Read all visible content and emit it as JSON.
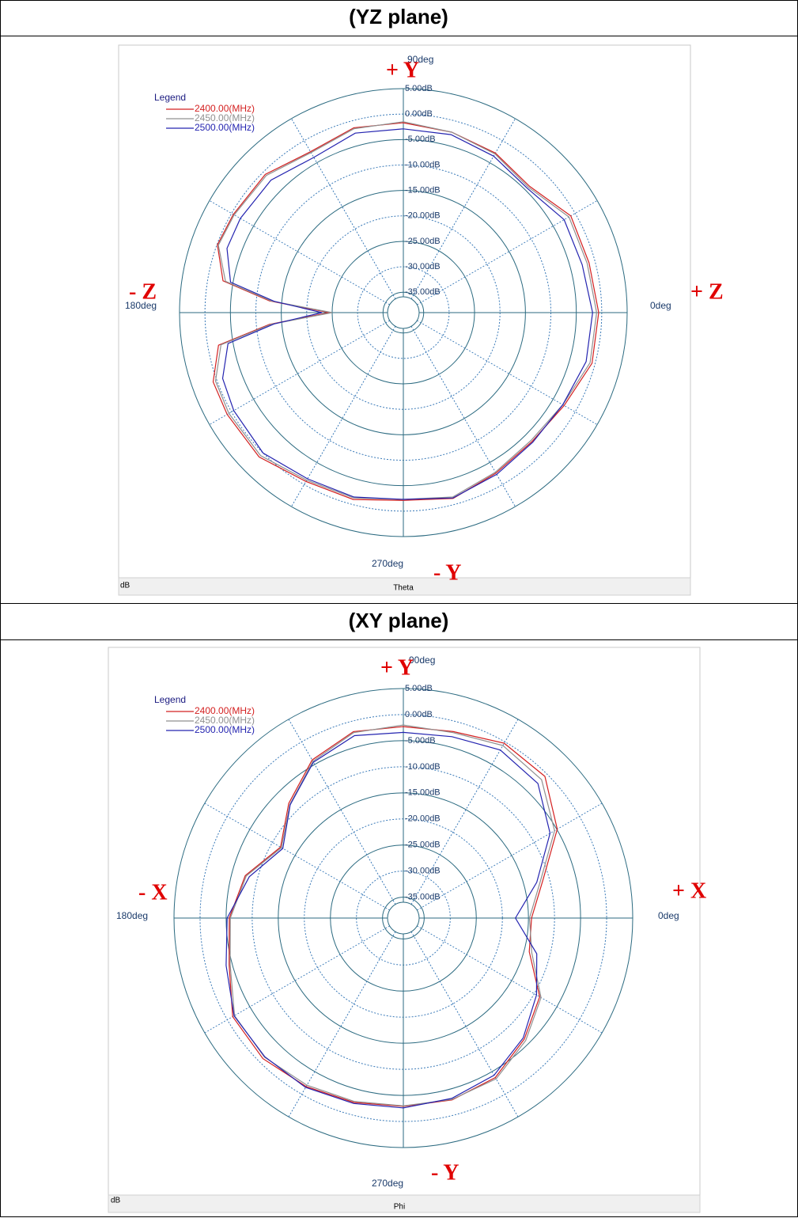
{
  "chart_data": [
    {
      "type": "polar",
      "title": "(YZ plane)",
      "legend_title": "Legend",
      "rlabel": "dB",
      "xlabel": "Theta",
      "annotations": [
        "+ Y",
        "- Y",
        "- Z",
        "+ Z"
      ],
      "rlim": [
        -39,
        5
      ],
      "rticks": [
        {
          "value": 5,
          "label": "5.00dB"
        },
        {
          "value": 0,
          "label": "0.00dB"
        },
        {
          "value": -5,
          "label": "-5.00dB"
        },
        {
          "value": -10,
          "label": "-10.00dB"
        },
        {
          "value": -15,
          "label": "-15.00dB"
        },
        {
          "value": -20,
          "label": "-20.00dB"
        },
        {
          "value": -25,
          "label": "-25.00dB"
        },
        {
          "value": -30,
          "label": "-30.00dB"
        },
        {
          "value": -35,
          "label": "-35.00dB"
        }
      ],
      "thetaticks": [
        {
          "value": 0,
          "label": "0deg"
        },
        {
          "value": 90,
          "label": "90deg"
        },
        {
          "value": 180,
          "label": "180deg"
        },
        {
          "value": 270,
          "label": "270deg"
        }
      ],
      "thetagrid": [
        0,
        30,
        60,
        90,
        120,
        150,
        180,
        210,
        240,
        270,
        300,
        330
      ],
      "theta": [
        0,
        15,
        30,
        45,
        60,
        75,
        90,
        105,
        120,
        135,
        150,
        160,
        170,
        175,
        180,
        185,
        190,
        200,
        210,
        225,
        240,
        255,
        270,
        285,
        300,
        315,
        330,
        345
      ],
      "series": [
        {
          "name": "2400.00(MHz)",
          "color": "#d42020",
          "values": [
            -0.6,
            -1.2,
            -1.0,
            -3.9,
            -2.8,
            -2.3,
            -1.7,
            -1.4,
            -2.5,
            -0.6,
            -0.4,
            -0.1,
            -3,
            -12.6,
            -24.5,
            -12.6,
            -2.1,
            0.8,
            1.0,
            1.1,
            -0.7,
            -1,
            -2.1,
            -1.2,
            -2.6,
            -3.2,
            -2.5,
            -0.6
          ]
        },
        {
          "name": "2450.00(MHz)",
          "color": "#909090",
          "values": [
            -1.0,
            -1.6,
            -1.4,
            -4.2,
            -3.0,
            -2.3,
            -1.5,
            -1.6,
            -2.7,
            -0.9,
            -0.6,
            -0.3,
            -3.5,
            -13,
            -25,
            -13,
            -2.6,
            0.3,
            0.6,
            0.7,
            -1.0,
            -1.3,
            -2.3,
            -1.5,
            -2.8,
            -3.5,
            -2.8,
            -1.0
          ]
        },
        {
          "name": "2500.00(MHz)",
          "color": "#2424b0",
          "values": [
            -1.8,
            -2.6,
            -2.5,
            -4.5,
            -3.5,
            -2.8,
            -2.9,
            -2.5,
            -3.8,
            -2.2,
            -2.0,
            -2.1,
            -4.5,
            -13.5,
            -23,
            -13.5,
            -4,
            -1.2,
            -0.5,
            0.0,
            -1.3,
            -1.5,
            -2.3,
            -1.3,
            -2.3,
            -3.0,
            -2.8,
            -1.8
          ]
        }
      ]
    },
    {
      "type": "polar",
      "title": "(XY plane)",
      "legend_title": "Legend",
      "rlabel": "dB",
      "xlabel": "Phi",
      "annotations": [
        "+ Y",
        "- Y",
        "- X",
        "+ X"
      ],
      "rlim": [
        -39,
        5
      ],
      "rticks": [
        {
          "value": 5,
          "label": "5.00dB"
        },
        {
          "value": 0,
          "label": "0.00dB"
        },
        {
          "value": -5,
          "label": "-5.00dB"
        },
        {
          "value": -10,
          "label": "-10.00dB"
        },
        {
          "value": -15,
          "label": "-15.00dB"
        },
        {
          "value": -20,
          "label": "-20.00dB"
        },
        {
          "value": -25,
          "label": "-25.00dB"
        },
        {
          "value": -30,
          "label": "-30.00dB"
        },
        {
          "value": -35,
          "label": "-35.00dB"
        }
      ],
      "thetaticks": [
        {
          "value": 0,
          "label": "0deg"
        },
        {
          "value": 90,
          "label": "90deg"
        },
        {
          "value": 180,
          "label": "180deg"
        },
        {
          "value": 270,
          "label": "270deg"
        }
      ],
      "thetagrid": [
        0,
        30,
        60,
        90,
        120,
        150,
        180,
        210,
        240,
        270,
        300,
        330
      ],
      "theta": [
        0,
        15,
        30,
        45,
        60,
        75,
        90,
        105,
        120,
        135,
        150,
        165,
        180,
        195,
        210,
        225,
        240,
        255,
        270,
        285,
        300,
        315,
        330,
        345
      ],
      "series": [
        {
          "name": "2400.00(MHz)",
          "color": "#d42020",
          "values": [
            -14.4,
            -11.3,
            -4.9,
            -0.6,
            -0.3,
            -2,
            -2.3,
            -2,
            -4,
            -7.9,
            -11.8,
            -7.6,
            -5.6,
            -4.4,
            -1.2,
            -0.9,
            -1.7,
            -2.4,
            -2.9,
            -2.9,
            -3.7,
            -6.2,
            -8.8,
            -14
          ]
        },
        {
          "name": "2450.00(MHz)",
          "color": "#909090",
          "values": [
            -14.8,
            -11.8,
            -5.5,
            -1.5,
            -0.8,
            -2.2,
            -2.0,
            -2.2,
            -4.3,
            -8.2,
            -12.0,
            -7.8,
            -5.8,
            -4.6,
            -1.6,
            -1.3,
            -2.0,
            -2.6,
            -3.0,
            -3.0,
            -3.4,
            -5.8,
            -8.5,
            -13.5
          ]
        },
        {
          "name": "2500.00(MHz)",
          "color": "#2424b0",
          "values": [
            -17.5,
            -12.5,
            -6.5,
            -2.5,
            -1.8,
            -3.0,
            -3.4,
            -2.8,
            -4.5,
            -8.3,
            -12.3,
            -8.4,
            -5.2,
            -3.8,
            -1.5,
            -1.4,
            -1.5,
            -2.2,
            -2.6,
            -3.2,
            -4.2,
            -6.5,
            -9.5,
            -12.5
          ]
        }
      ]
    }
  ]
}
